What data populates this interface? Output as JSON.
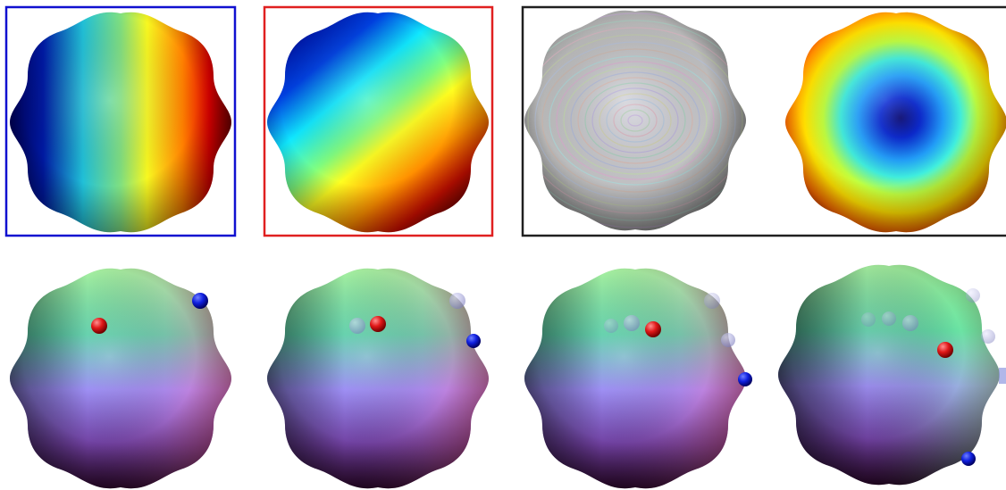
{
  "figure": {
    "top_row": [
      {
        "id": "a",
        "frame_color": "#1010d0",
        "shading": "horizontal-rainbow"
      },
      {
        "id": "b",
        "frame_color": "#e02020",
        "shading": "diagonal-rainbow"
      },
      {
        "id": "c",
        "frame_color": "#202020",
        "shading": "streamline-texture"
      },
      {
        "id": "d",
        "frame_color": "#202020",
        "shading": "radial-rainbow"
      }
    ],
    "bottom_row": [
      {
        "id": "e",
        "shading": "normal-map",
        "red_markers": 1,
        "blue_markers": 1
      },
      {
        "id": "f",
        "shading": "normal-map",
        "red_markers": 1,
        "blue_markers": 2
      },
      {
        "id": "g",
        "shading": "normal-map",
        "red_markers": 1,
        "blue_markers": 3
      },
      {
        "id": "h",
        "shading": "normal-map",
        "red_markers": 1,
        "blue_markers": 4
      }
    ],
    "colors": {
      "marker_red": "#e01818",
      "marker_blue": "#1020e0",
      "frame_black": "#202020"
    }
  }
}
